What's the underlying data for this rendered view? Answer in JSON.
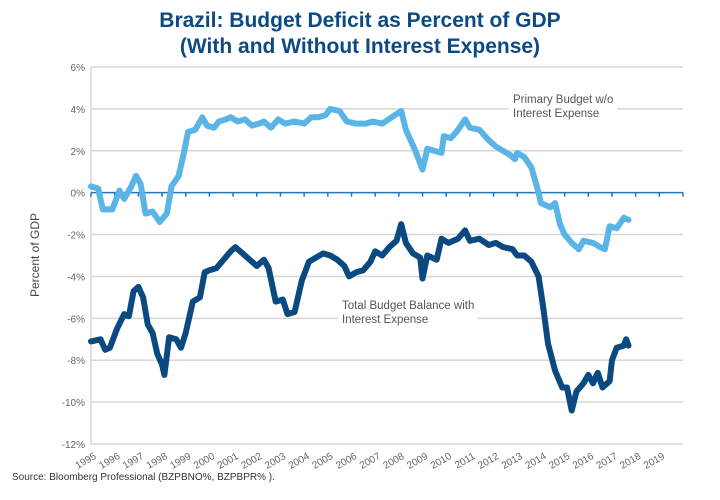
{
  "chart_data": {
    "type": "line",
    "title": "Brazil: Budget Deficit as Percent of GDP",
    "subtitle": "(With and Without Interest Expense)",
    "ylabel": "Percent of GDP",
    "xlabel": "",
    "xlim": [
      1995,
      2020
    ],
    "ylim": [
      -12,
      6
    ],
    "yticks": [
      "6%",
      "4%",
      "2%",
      "0%",
      "-2%",
      "-4%",
      "-6%",
      "-8%",
      "-10%",
      "-12%"
    ],
    "ytick_values": [
      6,
      4,
      2,
      0,
      -2,
      -4,
      -6,
      -8,
      -10,
      -12
    ],
    "xticks": [
      "1995",
      "1996",
      "1997",
      "1998",
      "1999",
      "2000",
      "2001",
      "2002",
      "2003",
      "2004",
      "2005",
      "2006",
      "2007",
      "2008",
      "2009",
      "2010",
      "2011",
      "2012",
      "2013",
      "2014",
      "2015",
      "2016",
      "2017",
      "2018",
      "2019"
    ],
    "grid": true,
    "source": "Source:  Bloomberg Professional (BZPBNO%, BZPBPR% ).",
    "series": [
      {
        "name": "Primary Budget w/o Interest Expense",
        "color": "#5ab4e5",
        "points": [
          [
            1995.0,
            0.3
          ],
          [
            1995.3,
            0.2
          ],
          [
            1995.5,
            -0.8
          ],
          [
            1995.9,
            -0.8
          ],
          [
            1996.2,
            0.1
          ],
          [
            1996.4,
            -0.3
          ],
          [
            1996.7,
            0.3
          ],
          [
            1996.9,
            0.8
          ],
          [
            1997.1,
            0.4
          ],
          [
            1997.3,
            -1.0
          ],
          [
            1997.6,
            -0.9
          ],
          [
            1997.9,
            -1.4
          ],
          [
            1998.2,
            -1.0
          ],
          [
            1998.4,
            0.3
          ],
          [
            1998.7,
            0.8
          ],
          [
            1998.9,
            1.8
          ],
          [
            1999.1,
            2.9
          ],
          [
            1999.4,
            3.0
          ],
          [
            1999.7,
            3.6
          ],
          [
            1999.9,
            3.2
          ],
          [
            2000.2,
            3.1
          ],
          [
            2000.4,
            3.4
          ],
          [
            2000.7,
            3.5
          ],
          [
            2000.9,
            3.6
          ],
          [
            2001.2,
            3.4
          ],
          [
            2001.5,
            3.5
          ],
          [
            2001.8,
            3.2
          ],
          [
            2002.1,
            3.3
          ],
          [
            2002.3,
            3.4
          ],
          [
            2002.6,
            3.1
          ],
          [
            2002.9,
            3.5
          ],
          [
            2003.2,
            3.3
          ],
          [
            2003.6,
            3.4
          ],
          [
            2004.0,
            3.3
          ],
          [
            2004.3,
            3.6
          ],
          [
            2004.6,
            3.6
          ],
          [
            2004.9,
            3.7
          ],
          [
            2005.1,
            4.0
          ],
          [
            2005.5,
            3.9
          ],
          [
            2005.8,
            3.4
          ],
          [
            2006.2,
            3.3
          ],
          [
            2006.6,
            3.3
          ],
          [
            2006.9,
            3.4
          ],
          [
            2007.3,
            3.3
          ],
          [
            2007.7,
            3.6
          ],
          [
            2008.1,
            3.9
          ],
          [
            2008.3,
            3.0
          ],
          [
            2008.7,
            2.0
          ],
          [
            2009.0,
            1.1
          ],
          [
            2009.2,
            2.1
          ],
          [
            2009.5,
            2.0
          ],
          [
            2009.8,
            1.9
          ],
          [
            2009.9,
            2.7
          ],
          [
            2010.2,
            2.6
          ],
          [
            2010.5,
            3.0
          ],
          [
            2010.8,
            3.5
          ],
          [
            2011.0,
            3.1
          ],
          [
            2011.4,
            3.0
          ],
          [
            2011.8,
            2.5
          ],
          [
            2012.1,
            2.2
          ],
          [
            2012.4,
            2.0
          ],
          [
            2012.7,
            1.8
          ],
          [
            2012.9,
            1.6
          ],
          [
            2013.0,
            1.9
          ],
          [
            2013.3,
            1.7
          ],
          [
            2013.6,
            1.2
          ],
          [
            2013.9,
            0.0
          ],
          [
            2014.0,
            -0.5
          ],
          [
            2014.4,
            -0.7
          ],
          [
            2014.6,
            -0.5
          ],
          [
            2014.8,
            -1.5
          ],
          [
            2015.0,
            -2.0
          ],
          [
            2015.3,
            -2.4
          ],
          [
            2015.6,
            -2.7
          ],
          [
            2015.8,
            -2.3
          ],
          [
            2016.2,
            -2.4
          ],
          [
            2016.5,
            -2.6
          ],
          [
            2016.7,
            -2.7
          ],
          [
            2016.9,
            -1.6
          ],
          [
            2017.2,
            -1.7
          ],
          [
            2017.5,
            -1.2
          ],
          [
            2017.7,
            -1.3
          ]
        ]
      },
      {
        "name": "Total Budget Balance with Interest Expense",
        "color": "#0a4a80",
        "points": [
          [
            1995.0,
            -7.1
          ],
          [
            1995.4,
            -7.0
          ],
          [
            1995.6,
            -7.5
          ],
          [
            1995.8,
            -7.4
          ],
          [
            1996.1,
            -6.5
          ],
          [
            1996.4,
            -5.8
          ],
          [
            1996.6,
            -5.9
          ],
          [
            1996.8,
            -4.7
          ],
          [
            1997.0,
            -4.5
          ],
          [
            1997.2,
            -5.0
          ],
          [
            1997.4,
            -6.3
          ],
          [
            1997.6,
            -6.7
          ],
          [
            1997.8,
            -7.7
          ],
          [
            1998.0,
            -8.2
          ],
          [
            1998.1,
            -8.7
          ],
          [
            1998.3,
            -6.9
          ],
          [
            1998.6,
            -7.0
          ],
          [
            1998.8,
            -7.4
          ],
          [
            1999.0,
            -6.7
          ],
          [
            1999.3,
            -5.2
          ],
          [
            1999.6,
            -5.0
          ],
          [
            1999.8,
            -3.8
          ],
          [
            2000.0,
            -3.7
          ],
          [
            2000.3,
            -3.6
          ],
          [
            2000.6,
            -3.2
          ],
          [
            2000.9,
            -2.8
          ],
          [
            2001.1,
            -2.6
          ],
          [
            2001.4,
            -2.9
          ],
          [
            2001.7,
            -3.2
          ],
          [
            2002.0,
            -3.5
          ],
          [
            2002.3,
            -3.2
          ],
          [
            2002.5,
            -3.6
          ],
          [
            2002.8,
            -5.2
          ],
          [
            2003.1,
            -5.1
          ],
          [
            2003.3,
            -5.8
          ],
          [
            2003.6,
            -5.7
          ],
          [
            2003.9,
            -4.2
          ],
          [
            2004.2,
            -3.3
          ],
          [
            2004.5,
            -3.1
          ],
          [
            2004.8,
            -2.9
          ],
          [
            2005.1,
            -3.0
          ],
          [
            2005.4,
            -3.2
          ],
          [
            2005.7,
            -3.5
          ],
          [
            2005.9,
            -4.0
          ],
          [
            2006.2,
            -3.8
          ],
          [
            2006.5,
            -3.7
          ],
          [
            2006.8,
            -3.3
          ],
          [
            2007.0,
            -2.8
          ],
          [
            2007.3,
            -3.0
          ],
          [
            2007.6,
            -2.6
          ],
          [
            2007.9,
            -2.3
          ],
          [
            2008.1,
            -1.5
          ],
          [
            2008.3,
            -2.4
          ],
          [
            2008.6,
            -2.9
          ],
          [
            2008.9,
            -3.1
          ],
          [
            2009.0,
            -4.1
          ],
          [
            2009.2,
            -3.0
          ],
          [
            2009.6,
            -3.2
          ],
          [
            2009.8,
            -2.2
          ],
          [
            2010.1,
            -2.4
          ],
          [
            2010.5,
            -2.2
          ],
          [
            2010.8,
            -1.8
          ],
          [
            2011.0,
            -2.3
          ],
          [
            2011.4,
            -2.2
          ],
          [
            2011.8,
            -2.5
          ],
          [
            2012.1,
            -2.4
          ],
          [
            2012.4,
            -2.6
          ],
          [
            2012.8,
            -2.7
          ],
          [
            2013.0,
            -3.0
          ],
          [
            2013.3,
            -3.0
          ],
          [
            2013.6,
            -3.3
          ],
          [
            2013.9,
            -4.0
          ],
          [
            2014.1,
            -5.5
          ],
          [
            2014.3,
            -7.2
          ],
          [
            2014.6,
            -8.5
          ],
          [
            2014.9,
            -9.3
          ],
          [
            2015.1,
            -9.3
          ],
          [
            2015.3,
            -10.4
          ],
          [
            2015.5,
            -9.5
          ],
          [
            2015.8,
            -9.1
          ],
          [
            2016.0,
            -8.7
          ],
          [
            2016.2,
            -9.1
          ],
          [
            2016.4,
            -8.6
          ],
          [
            2016.6,
            -9.3
          ],
          [
            2016.9,
            -9.0
          ],
          [
            2017.0,
            -8.0
          ],
          [
            2017.2,
            -7.4
          ],
          [
            2017.5,
            -7.3
          ],
          [
            2017.6,
            -7.0
          ],
          [
            2017.7,
            -7.3
          ]
        ]
      }
    ],
    "annotations": [
      {
        "line1": "Primary Budget w/o",
        "line2": "Interest Expense"
      },
      {
        "line1": "Total Budget Balance with",
        "line2": "Interest Expense"
      }
    ]
  }
}
